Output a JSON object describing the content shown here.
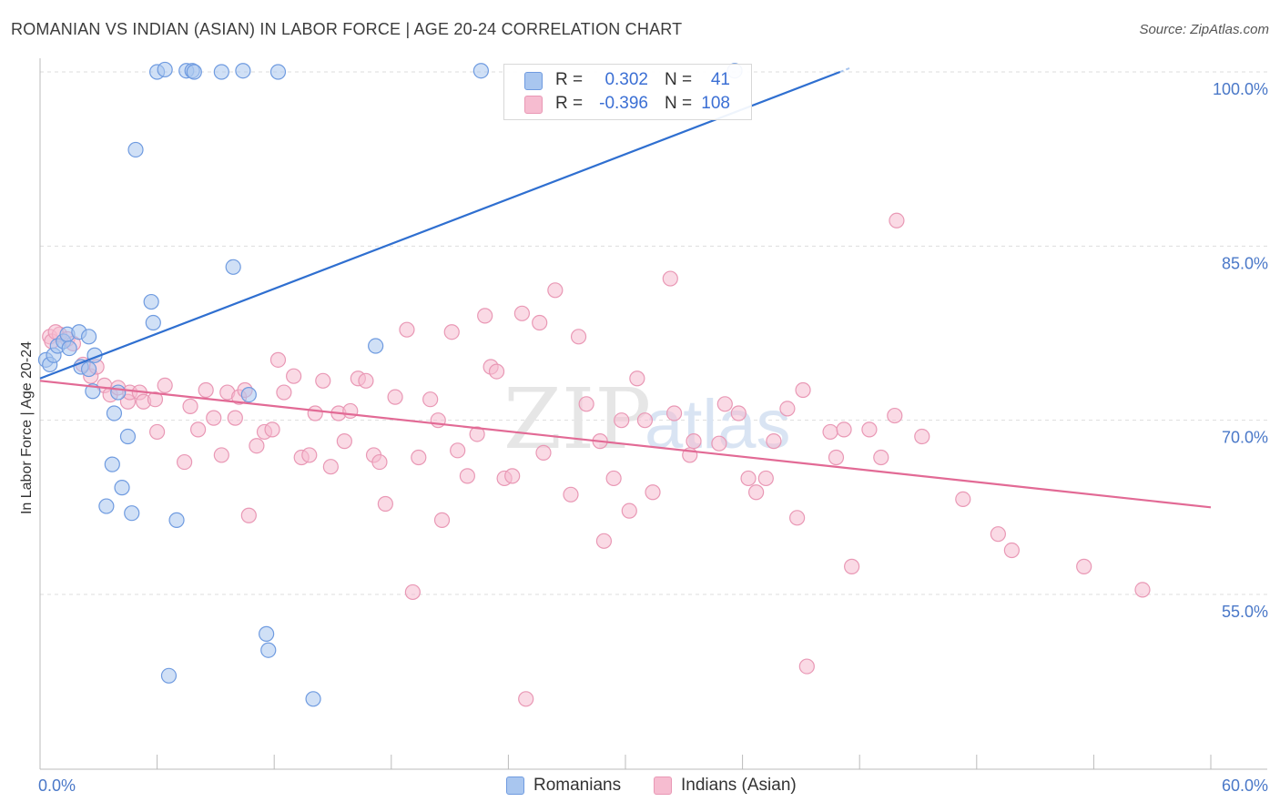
{
  "title": "ROMANIAN VS INDIAN (ASIAN) IN LABOR FORCE | AGE 20-24 CORRELATION CHART",
  "source": "Source: ZipAtlas.com",
  "watermark": "ZIPatlas",
  "colors": {
    "blue_fill": "#a9c6ef",
    "blue_stroke": "#6f9be0",
    "blue_line": "#2f6fd0",
    "pink_fill": "#f6bcd0",
    "pink_stroke": "#e998b5",
    "pink_line": "#e26a95",
    "axis_text": "#4a78c8",
    "grid": "#dddddd"
  },
  "legend": {
    "rows": [
      {
        "series": "Romanians",
        "r_label": "R =",
        "r_value": "0.302",
        "n_label": "N =",
        "n_value": "41"
      },
      {
        "series": "Indians (Asian)",
        "r_label": "R =",
        "r_value": "-0.396",
        "n_label": "N =",
        "n_value": "108"
      }
    ]
  },
  "bottom_legend": [
    "Romanians",
    "Indians (Asian)"
  ],
  "chart_data": {
    "type": "scatter",
    "title": "ROMANIAN VS INDIAN (ASIAN) IN LABOR FORCE | AGE 20-24 CORRELATION CHART",
    "xlabel": "",
    "ylabel": "In Labor Force | Age 20-24",
    "xlim": [
      0,
      60
    ],
    "ylim": [
      40,
      101
    ],
    "x_tick_labels": [
      "0.0%",
      "60.0%"
    ],
    "y_ticks": [
      55,
      70,
      85,
      100
    ],
    "y_tick_labels": [
      "55.0%",
      "70.0%",
      "85.0%",
      "100.0%"
    ],
    "grid": true,
    "series": [
      {
        "name": "Romanians",
        "r": 0.302,
        "n": 41,
        "trend": {
          "x0": 0,
          "y0": 73.6,
          "x1": 41,
          "y1": 100.0
        },
        "points": [
          [
            0.3,
            75.2
          ],
          [
            0.5,
            74.8
          ],
          [
            0.7,
            75.6
          ],
          [
            0.9,
            76.4
          ],
          [
            1.2,
            76.8
          ],
          [
            1.4,
            77.4
          ],
          [
            1.5,
            76.2
          ],
          [
            2.0,
            77.6
          ],
          [
            2.1,
            74.6
          ],
          [
            2.5,
            74.4
          ],
          [
            2.5,
            77.2
          ],
          [
            2.7,
            72.5
          ],
          [
            2.8,
            75.6
          ],
          [
            4.0,
            72.4
          ],
          [
            3.8,
            70.6
          ],
          [
            4.5,
            68.6
          ],
          [
            3.7,
            66.2
          ],
          [
            4.2,
            64.2
          ],
          [
            3.4,
            62.6
          ],
          [
            4.7,
            62.0
          ],
          [
            5.7,
            80.2
          ],
          [
            5.8,
            78.4
          ],
          [
            7.0,
            61.4
          ],
          [
            4.9,
            93.3
          ],
          [
            6.0,
            100.0
          ],
          [
            6.4,
            100.2
          ],
          [
            7.5,
            100.1
          ],
          [
            7.8,
            100.1
          ],
          [
            7.9,
            100.0
          ],
          [
            9.3,
            100.0
          ],
          [
            10.4,
            100.1
          ],
          [
            12.2,
            100.0
          ],
          [
            9.9,
            83.2
          ],
          [
            10.7,
            72.2
          ],
          [
            11.6,
            51.6
          ],
          [
            11.7,
            50.2
          ],
          [
            6.6,
            48.0
          ],
          [
            14.0,
            46.0
          ],
          [
            17.2,
            76.4
          ],
          [
            22.6,
            100.1
          ],
          [
            35.6,
            100.1
          ]
        ]
      },
      {
        "name": "Indians (Asian)",
        "r": -0.396,
        "n": 108,
        "trend": {
          "x0": 0,
          "y0": 73.4,
          "x1": 60,
          "y1": 62.5
        },
        "points": [
          [
            0.5,
            77.2
          ],
          [
            0.6,
            76.8
          ],
          [
            1.0,
            77.4
          ],
          [
            1.4,
            77.0
          ],
          [
            1.7,
            76.6
          ],
          [
            2.2,
            74.8
          ],
          [
            2.6,
            73.8
          ],
          [
            2.9,
            74.6
          ],
          [
            3.3,
            73.0
          ],
          [
            3.6,
            72.2
          ],
          [
            4.0,
            72.8
          ],
          [
            4.5,
            71.6
          ],
          [
            4.6,
            72.4
          ],
          [
            5.1,
            72.4
          ],
          [
            5.3,
            71.6
          ],
          [
            5.9,
            71.8
          ],
          [
            6.0,
            69.0
          ],
          [
            6.4,
            73.0
          ],
          [
            7.4,
            66.4
          ],
          [
            7.7,
            71.2
          ],
          [
            8.1,
            69.2
          ],
          [
            8.5,
            72.6
          ],
          [
            8.9,
            70.2
          ],
          [
            9.3,
            67.0
          ],
          [
            9.6,
            72.4
          ],
          [
            10.0,
            70.2
          ],
          [
            10.2,
            72.0
          ],
          [
            10.5,
            72.6
          ],
          [
            10.7,
            61.8
          ],
          [
            11.1,
            67.8
          ],
          [
            11.5,
            69.0
          ],
          [
            11.9,
            69.2
          ],
          [
            12.2,
            75.2
          ],
          [
            12.5,
            72.4
          ],
          [
            13.0,
            73.8
          ],
          [
            13.4,
            66.8
          ],
          [
            13.8,
            67.0
          ],
          [
            14.1,
            70.6
          ],
          [
            14.5,
            73.4
          ],
          [
            14.9,
            66.0
          ],
          [
            15.3,
            70.6
          ],
          [
            15.6,
            68.2
          ],
          [
            15.9,
            70.8
          ],
          [
            16.3,
            73.6
          ],
          [
            16.7,
            73.4
          ],
          [
            17.1,
            67.0
          ],
          [
            17.4,
            66.4
          ],
          [
            17.7,
            62.8
          ],
          [
            18.2,
            72.0
          ],
          [
            18.8,
            77.8
          ],
          [
            19.1,
            55.2
          ],
          [
            19.4,
            66.8
          ],
          [
            20.0,
            71.8
          ],
          [
            20.4,
            70.0
          ],
          [
            20.6,
            61.4
          ],
          [
            21.1,
            77.6
          ],
          [
            21.4,
            67.4
          ],
          [
            21.9,
            65.2
          ],
          [
            22.4,
            68.8
          ],
          [
            22.8,
            79.0
          ],
          [
            23.1,
            74.6
          ],
          [
            23.4,
            74.2
          ],
          [
            23.8,
            65.0
          ],
          [
            24.2,
            65.2
          ],
          [
            24.7,
            79.2
          ],
          [
            24.9,
            46.0
          ],
          [
            25.6,
            78.4
          ],
          [
            25.8,
            67.2
          ],
          [
            26.4,
            81.2
          ],
          [
            27.2,
            63.6
          ],
          [
            27.6,
            77.2
          ],
          [
            28.0,
            71.4
          ],
          [
            28.7,
            68.2
          ],
          [
            28.9,
            59.6
          ],
          [
            29.4,
            65.0
          ],
          [
            29.8,
            70.0
          ],
          [
            30.2,
            62.2
          ],
          [
            30.6,
            73.6
          ],
          [
            31.0,
            70.0
          ],
          [
            31.4,
            63.8
          ],
          [
            32.3,
            82.2
          ],
          [
            32.5,
            70.6
          ],
          [
            33.3,
            67.0
          ],
          [
            33.5,
            68.2
          ],
          [
            34.8,
            68.0
          ],
          [
            35.1,
            71.4
          ],
          [
            35.8,
            70.6
          ],
          [
            36.3,
            65.0
          ],
          [
            36.7,
            63.8
          ],
          [
            37.2,
            65.0
          ],
          [
            37.6,
            68.2
          ],
          [
            38.3,
            71.0
          ],
          [
            38.8,
            61.6
          ],
          [
            39.1,
            72.6
          ],
          [
            39.3,
            48.8
          ],
          [
            40.5,
            69.0
          ],
          [
            40.8,
            66.8
          ],
          [
            41.2,
            69.2
          ],
          [
            41.6,
            57.4
          ],
          [
            42.5,
            69.2
          ],
          [
            43.1,
            66.8
          ],
          [
            43.8,
            70.4
          ],
          [
            43.9,
            87.2
          ],
          [
            45.2,
            68.6
          ],
          [
            47.3,
            63.2
          ],
          [
            49.1,
            60.2
          ],
          [
            49.8,
            58.8
          ],
          [
            53.5,
            57.4
          ],
          [
            56.5,
            55.4
          ],
          [
            0.8,
            77.6
          ]
        ]
      }
    ]
  }
}
